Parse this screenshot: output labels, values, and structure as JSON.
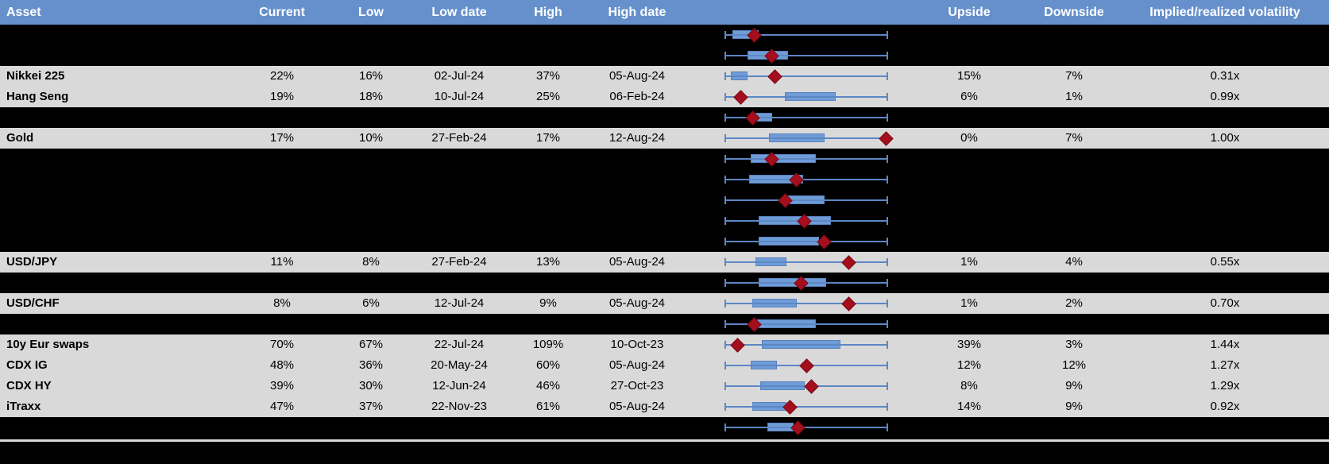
{
  "header": {
    "columns": {
      "asset": "Asset",
      "current": "Current",
      "low": "Low",
      "low_date": "Low date",
      "high": "High",
      "high_date": "High date",
      "upside": "Upside",
      "downside": "Downside",
      "implied_realized": "Implied/realized volatility"
    }
  },
  "colors": {
    "header_bg": "#6590CB",
    "header_text": "#FFFFFF",
    "row_gray": "#D9D9D9",
    "row_black": "#000000",
    "body_text": "#000000",
    "box_fill": "#6F9CD7",
    "box_border": "#5881BE",
    "whisker": "#5B87C5",
    "diamond": "#A40E1D",
    "diamond_border": "#7E0A14",
    "separator": "#D9D9D9"
  },
  "chart_data": {
    "type": "box-whisker-table",
    "note": "Each row shows a horizontal box-and-whisker volatility range with a dark-red diamond marking the current level. Whiskers span a fixed common axis; box_pct and marker_pct are percent positions along that axis (0 = left whisker end, 100 = right whisker end). Rows of kind 'redacted' are blacked out in the source image but their plots remain visible.",
    "rows": [
      {
        "kind": "redacted",
        "asset": "",
        "current": "",
        "low": "",
        "low_date": "",
        "high": "",
        "high_date": "",
        "upside": "",
        "downside": "",
        "implied_realized": "",
        "box_pct": [
          5,
          21
        ],
        "marker_pct": 18
      },
      {
        "kind": "redacted",
        "asset": "",
        "current": "",
        "low": "",
        "low_date": "",
        "high": "",
        "high_date": "",
        "upside": "",
        "downside": "",
        "implied_realized": "",
        "box_pct": [
          14,
          39
        ],
        "marker_pct": 29
      },
      {
        "kind": "data",
        "asset": "Nikkei 225",
        "current": "22%",
        "low": "16%",
        "low_date": "02-Jul-24",
        "high": "37%",
        "high_date": "05-Aug-24",
        "upside": "15%",
        "downside": "7%",
        "implied_realized": "0.31x",
        "box_pct": [
          4,
          14
        ],
        "marker_pct": 31
      },
      {
        "kind": "data",
        "asset": "Hang Seng",
        "current": "19%",
        "low": "18%",
        "low_date": "10-Jul-24",
        "high": "25%",
        "high_date": "06-Feb-24",
        "upside": "6%",
        "downside": "1%",
        "implied_realized": "0.99x",
        "box_pct": [
          37,
          68
        ],
        "marker_pct": 10
      },
      {
        "kind": "redacted",
        "asset": "",
        "current": "",
        "low": "",
        "low_date": "",
        "high": "",
        "high_date": "",
        "upside": "",
        "downside": "",
        "implied_realized": "",
        "box_pct": [
          17,
          29
        ],
        "marker_pct": 17
      },
      {
        "kind": "data",
        "asset": "Gold",
        "current": "17%",
        "low": "10%",
        "low_date": "27-Feb-24",
        "high": "17%",
        "high_date": "12-Aug-24",
        "upside": "0%",
        "downside": "7%",
        "implied_realized": "1.00x",
        "box_pct": [
          27,
          61
        ],
        "marker_pct": 99
      },
      {
        "kind": "redacted",
        "asset": "",
        "current": "",
        "low": "",
        "low_date": "",
        "high": "",
        "high_date": "",
        "upside": "",
        "downside": "",
        "implied_realized": "",
        "box_pct": [
          16,
          56
        ],
        "marker_pct": 29
      },
      {
        "kind": "redacted",
        "asset": "",
        "current": "",
        "low": "",
        "low_date": "",
        "high": "",
        "high_date": "",
        "upside": "",
        "downside": "",
        "implied_realized": "",
        "box_pct": [
          15,
          48
        ],
        "marker_pct": 44
      },
      {
        "kind": "redacted",
        "asset": "",
        "current": "",
        "low": "",
        "low_date": "",
        "high": "",
        "high_date": "",
        "upside": "",
        "downside": "",
        "implied_realized": "",
        "box_pct": [
          36,
          61
        ],
        "marker_pct": 37
      },
      {
        "kind": "redacted",
        "asset": "",
        "current": "",
        "low": "",
        "low_date": "",
        "high": "",
        "high_date": "",
        "upside": "",
        "downside": "",
        "implied_realized": "",
        "box_pct": [
          21,
          65
        ],
        "marker_pct": 49
      },
      {
        "kind": "redacted",
        "asset": "",
        "current": "",
        "low": "",
        "low_date": "",
        "high": "",
        "high_date": "",
        "upside": "",
        "downside": "",
        "implied_realized": "",
        "box_pct": [
          21,
          58
        ],
        "marker_pct": 61
      },
      {
        "kind": "data",
        "asset": "USD/JPY",
        "current": "11%",
        "low": "8%",
        "low_date": "27-Feb-24",
        "high": "13%",
        "high_date": "05-Aug-24",
        "upside": "1%",
        "downside": "4%",
        "implied_realized": "0.55x",
        "box_pct": [
          19,
          38
        ],
        "marker_pct": 76
      },
      {
        "kind": "redacted",
        "asset": "",
        "current": "",
        "low": "",
        "low_date": "",
        "high": "",
        "high_date": "",
        "upside": "",
        "downside": "",
        "implied_realized": "",
        "box_pct": [
          21,
          62
        ],
        "marker_pct": 47
      },
      {
        "kind": "data",
        "asset": "USD/CHF",
        "current": "8%",
        "low": "6%",
        "low_date": "12-Jul-24",
        "high": "9%",
        "high_date": "05-Aug-24",
        "upside": "1%",
        "downside": "2%",
        "implied_realized": "0.70x",
        "box_pct": [
          17,
          44
        ],
        "marker_pct": 76
      },
      {
        "kind": "redacted",
        "asset": "",
        "current": "",
        "low": "",
        "low_date": "",
        "high": "",
        "high_date": "",
        "upside": "",
        "downside": "",
        "implied_realized": "",
        "box_pct": [
          20,
          56
        ],
        "marker_pct": 18
      },
      {
        "kind": "data",
        "asset": "10y Eur swaps",
        "current": "70%",
        "low": "67%",
        "low_date": "22-Jul-24",
        "high": "109%",
        "high_date": "10-Oct-23",
        "upside": "39%",
        "downside": "3%",
        "implied_realized": "1.44x",
        "box_pct": [
          23,
          71
        ],
        "marker_pct": 8
      },
      {
        "kind": "data",
        "asset": "CDX IG",
        "current": "48%",
        "low": "36%",
        "low_date": "20-May-24",
        "high": "60%",
        "high_date": "05-Aug-24",
        "upside": "12%",
        "downside": "12%",
        "implied_realized": "1.27x",
        "box_pct": [
          16,
          32
        ],
        "marker_pct": 50
      },
      {
        "kind": "data",
        "asset": "CDX HY",
        "current": "39%",
        "low": "30%",
        "low_date": "12-Jun-24",
        "high": "46%",
        "high_date": "27-Oct-23",
        "upside": "8%",
        "downside": "9%",
        "implied_realized": "1.29x",
        "box_pct": [
          22,
          49
        ],
        "marker_pct": 53
      },
      {
        "kind": "data",
        "asset": "iTraxx",
        "current": "47%",
        "low": "37%",
        "low_date": "22-Nov-23",
        "high": "61%",
        "high_date": "05-Aug-24",
        "upside": "14%",
        "downside": "9%",
        "implied_realized": "0.92x",
        "box_pct": [
          17,
          38
        ],
        "marker_pct": 40
      },
      {
        "kind": "redacted",
        "asset": "",
        "current": "",
        "low": "",
        "low_date": "",
        "high": "",
        "high_date": "",
        "upside": "",
        "downside": "",
        "implied_realized": "",
        "box_pct": [
          26,
          42
        ],
        "marker_pct": 45
      }
    ]
  }
}
